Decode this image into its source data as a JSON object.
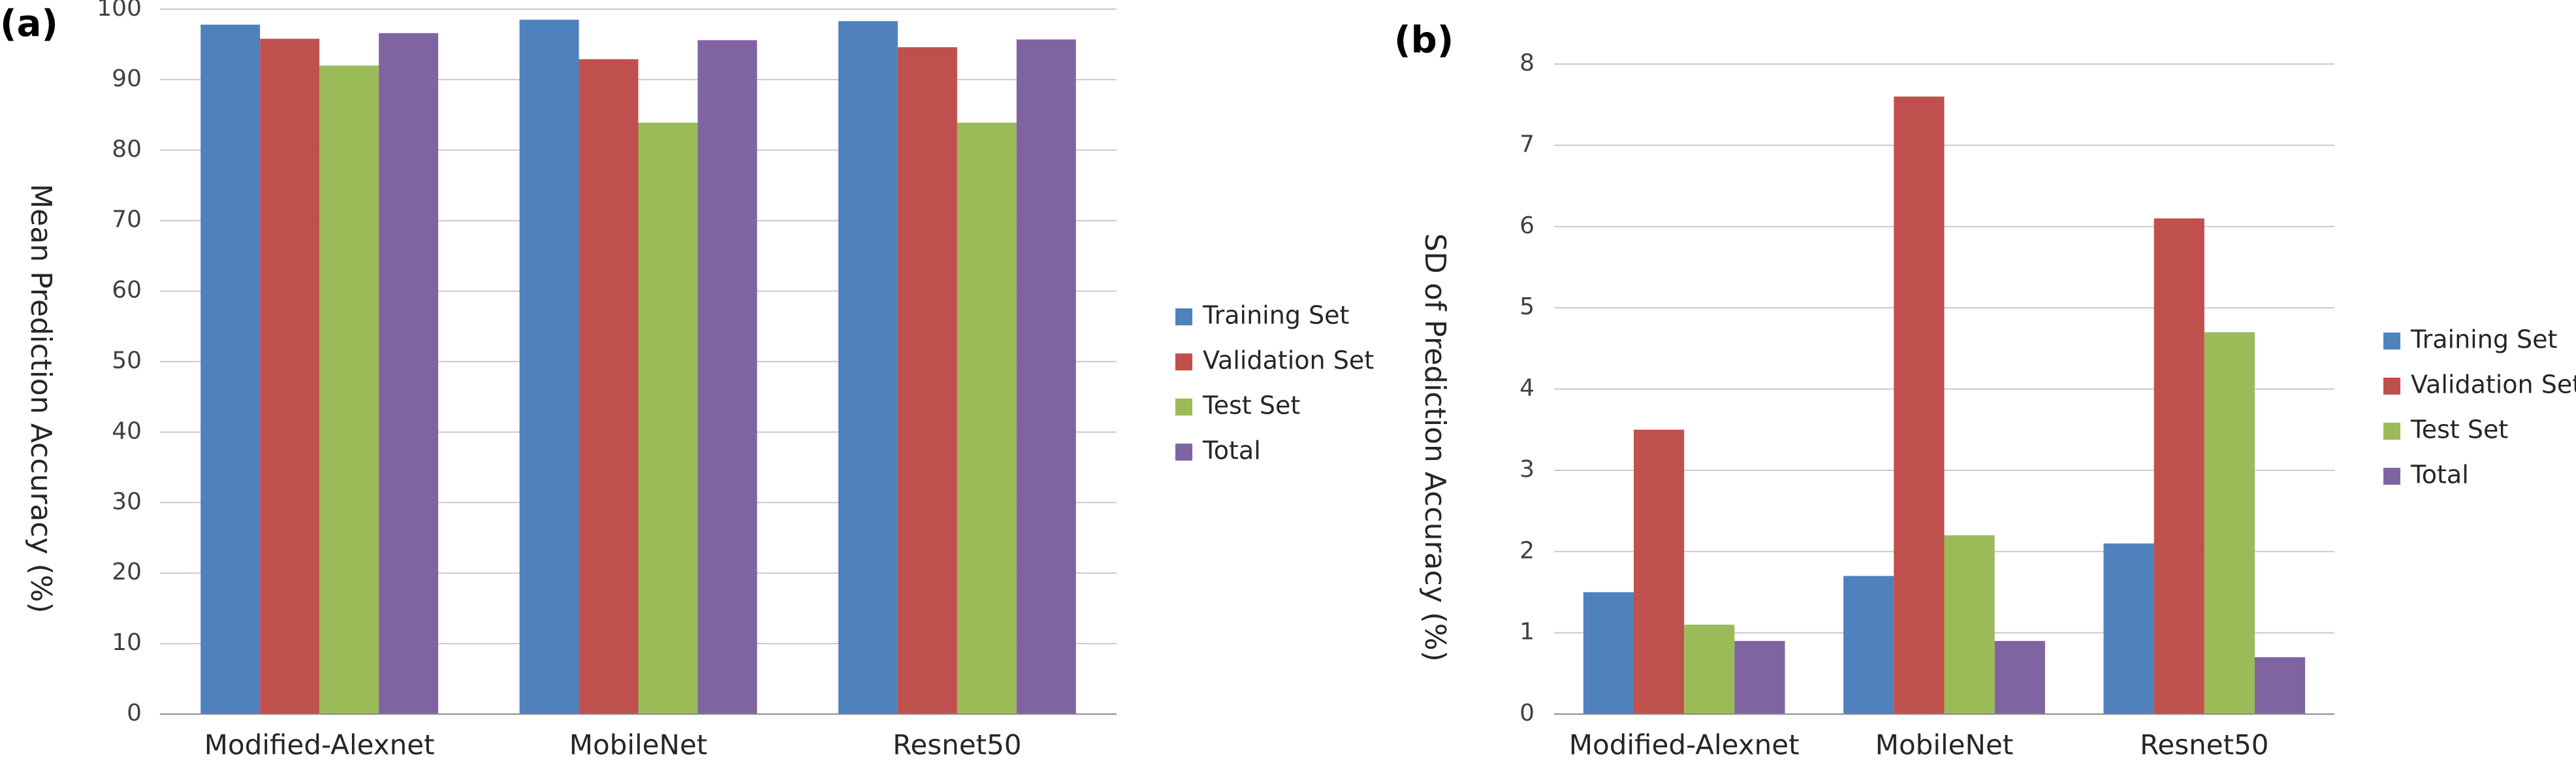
{
  "chart_data": [
    {
      "type": "bar",
      "panel_label": "(a)",
      "title": "",
      "xlabel": "",
      "ylabel": "Mean Prediction Accuracy (%)",
      "categories": [
        "Modified-Alexnet",
        "MobileNet",
        "Resnet50"
      ],
      "ylim": [
        0,
        100
      ],
      "yticks": [
        "0",
        "10",
        "20",
        "30",
        "40",
        "50",
        "60",
        "70",
        "80",
        "90",
        "100"
      ],
      "grid": true,
      "legend_position": "right",
      "series": [
        {
          "name": "Training Set",
          "color": "#4f81bd",
          "values": [
            97.8,
            98.5,
            98.3
          ]
        },
        {
          "name": "Validation Set",
          "color": "#c0504d",
          "values": [
            95.8,
            92.9,
            94.6
          ]
        },
        {
          "name": "Test Set",
          "color": "#9bbb59",
          "values": [
            92.0,
            83.9,
            83.9
          ]
        },
        {
          "name": "Total",
          "color": "#8064a2",
          "values": [
            96.6,
            95.6,
            95.7
          ]
        }
      ]
    },
    {
      "type": "bar",
      "panel_label": "(b)",
      "title": "",
      "xlabel": "",
      "ylabel": "SD of Prediction Accuracy (%)",
      "categories": [
        "Modified-Alexnet",
        "MobileNet",
        "Resnet50"
      ],
      "ylim": [
        0,
        8
      ],
      "yticks": [
        "0",
        "1",
        "2",
        "3",
        "4",
        "5",
        "6",
        "7",
        "8"
      ],
      "grid": true,
      "legend_position": "right",
      "series": [
        {
          "name": "Training Set",
          "color": "#4f81bd",
          "values": [
            1.5,
            1.7,
            2.1
          ]
        },
        {
          "name": "Validation Set",
          "color": "#c0504d",
          "values": [
            3.5,
            7.6,
            6.1
          ]
        },
        {
          "name": "Test Set",
          "color": "#9bbb59",
          "values": [
            1.1,
            2.2,
            4.7
          ]
        },
        {
          "name": "Total",
          "color": "#8064a2",
          "values": [
            0.9,
            0.9,
            0.7
          ]
        }
      ]
    }
  ]
}
